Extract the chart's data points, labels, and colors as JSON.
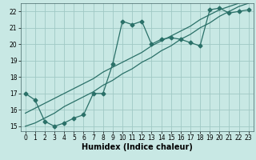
{
  "xlabel": "Humidex (Indice chaleur)",
  "xlim": [
    -0.5,
    23.5
  ],
  "ylim": [
    14.7,
    22.5
  ],
  "yticks": [
    15,
    16,
    17,
    18,
    19,
    20,
    21,
    22
  ],
  "xticks": [
    0,
    1,
    2,
    3,
    4,
    5,
    6,
    7,
    8,
    9,
    10,
    11,
    12,
    13,
    14,
    15,
    16,
    17,
    18,
    19,
    20,
    21,
    22,
    23
  ],
  "bg_color": "#c8e8e4",
  "grid_color": "#a0c8c4",
  "line_color": "#2a7068",
  "line1_x": [
    0,
    1,
    2,
    3,
    4,
    5,
    6,
    7,
    8,
    9,
    10,
    11,
    12,
    13,
    14,
    15,
    16,
    17,
    18,
    19,
    20,
    21,
    22,
    23
  ],
  "line1_y": [
    17.0,
    16.6,
    15.3,
    15.0,
    15.2,
    15.5,
    15.7,
    17.0,
    17.0,
    18.8,
    21.4,
    21.2,
    21.4,
    20.0,
    20.3,
    20.4,
    20.3,
    20.1,
    19.9,
    22.1,
    22.2,
    21.9,
    22.0,
    22.1
  ],
  "line2_x": [
    0,
    1,
    2,
    3,
    4,
    5,
    6,
    7,
    8,
    9,
    10,
    11,
    12,
    13,
    14,
    15,
    16,
    17,
    18,
    19,
    20,
    21,
    22,
    23
  ],
  "line2_y": [
    15.0,
    15.2,
    15.5,
    15.8,
    16.2,
    16.5,
    16.8,
    17.1,
    17.5,
    17.8,
    18.2,
    18.5,
    18.9,
    19.2,
    19.6,
    19.9,
    20.3,
    20.6,
    21.0,
    21.3,
    21.7,
    22.0,
    22.3,
    22.5
  ],
  "line3_x": [
    0,
    1,
    2,
    3,
    4,
    5,
    6,
    7,
    8,
    9,
    10,
    11,
    12,
    13,
    14,
    15,
    16,
    17,
    18,
    19,
    20,
    21,
    22,
    23
  ],
  "line3_y": [
    15.8,
    16.1,
    16.4,
    16.7,
    17.0,
    17.3,
    17.6,
    17.9,
    18.3,
    18.6,
    18.9,
    19.2,
    19.5,
    19.9,
    20.2,
    20.5,
    20.8,
    21.1,
    21.5,
    21.8,
    22.1,
    22.3,
    22.5,
    22.7
  ],
  "marker_size": 2.5,
  "line_width": 0.9,
  "xlabel_fontsize": 7,
  "tick_fontsize": 5.5
}
